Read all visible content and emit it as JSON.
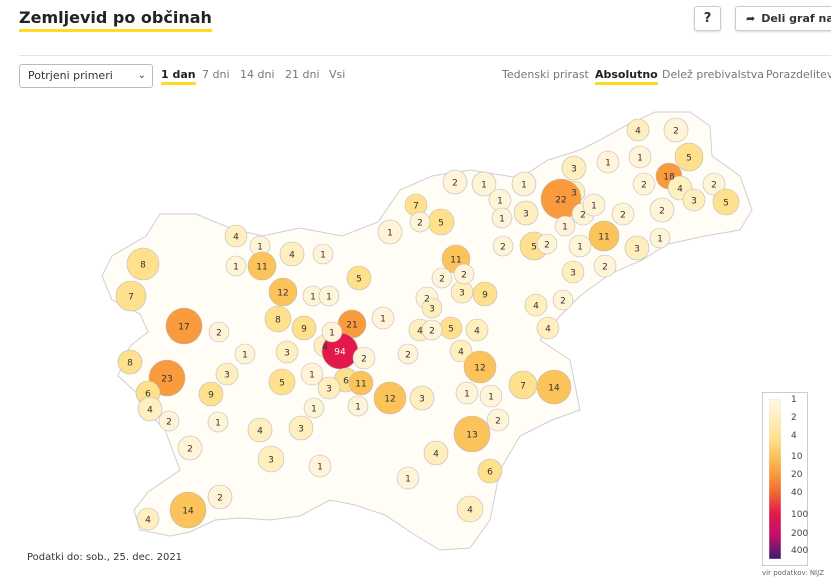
{
  "header": {
    "title": "Zemljevid po občinah",
    "help_label": "?",
    "share_label": "Deli graf na",
    "share_icon": "share-arrow-icon"
  },
  "controls": {
    "select_value": "Potrjeni primeri",
    "time_filters": [
      {
        "label": "1 dan",
        "active": true
      },
      {
        "label": "7 dni",
        "active": false
      },
      {
        "label": "14 dni",
        "active": false
      },
      {
        "label": "21 dni",
        "active": false
      },
      {
        "label": "Vsi",
        "active": false
      }
    ],
    "mode_filters": [
      {
        "label": "Tedenski prirast",
        "active": false
      },
      {
        "label": "Absolutno",
        "active": true
      },
      {
        "label": "Delež prebivalstva",
        "active": false
      },
      {
        "label": "Porazdelitev",
        "active": false
      }
    ]
  },
  "legend": {
    "labels": [
      "1",
      "2",
      "4",
      "10",
      "20",
      "40",
      "100",
      "200",
      "400"
    ],
    "colors": [
      "#fff8e6",
      "#ffeebe",
      "#ffe08c",
      "#fbc35a",
      "#f99b3c",
      "#f06a34",
      "#e2194a",
      "#c40f6a",
      "#3c1c70"
    ]
  },
  "map": {
    "outline_color": "#bbbbbb",
    "values": [
      {
        "v": 4
      },
      {
        "v": 2
      },
      {
        "v": 5
      },
      {
        "v": 1
      },
      {
        "v": 3
      },
      {
        "v": 1
      },
      {
        "v": 18
      },
      {
        "v": 2
      },
      {
        "v": 4
      },
      {
        "v": 2
      },
      {
        "v": 1
      },
      {
        "v": 3
      },
      {
        "v": 5
      },
      {
        "v": 1
      },
      {
        "v": 22
      },
      {
        "v": 2
      },
      {
        "v": 1
      },
      {
        "v": 3
      },
      {
        "v": 1
      },
      {
        "v": 2
      },
      {
        "v": 3
      },
      {
        "v": 7
      },
      {
        "v": 5
      },
      {
        "v": 2
      },
      {
        "v": 2
      },
      {
        "v": 11
      },
      {
        "v": 3
      },
      {
        "v": 1
      },
      {
        "v": 2
      },
      {
        "v": 5
      },
      {
        "v": 1
      },
      {
        "v": 1
      },
      {
        "v": 4
      },
      {
        "v": 1
      },
      {
        "v": 8
      },
      {
        "v": 1
      },
      {
        "v": 11
      },
      {
        "v": 4
      },
      {
        "v": 11
      },
      {
        "v": 2
      },
      {
        "v": 1
      },
      {
        "v": 2
      },
      {
        "v": 7
      },
      {
        "v": 12
      },
      {
        "v": 1
      },
      {
        "v": 1
      },
      {
        "v": 3
      },
      {
        "v": 2
      },
      {
        "v": 3
      },
      {
        "v": 9
      },
      {
        "v": 2
      },
      {
        "v": 2
      },
      {
        "v": 4
      },
      {
        "v": 2
      },
      {
        "v": 17
      },
      {
        "v": 2
      },
      {
        "v": 8
      },
      {
        "v": 9
      },
      {
        "v": 4
      },
      {
        "v": 1
      },
      {
        "v": 21
      },
      {
        "v": 1
      },
      {
        "v": 1
      },
      {
        "v": 5
      },
      {
        "v": 4
      },
      {
        "v": 4
      },
      {
        "v": 5
      },
      {
        "v": 3
      },
      {
        "v": 4
      },
      {
        "v": 8
      },
      {
        "v": 94
      },
      {
        "v": 2
      },
      {
        "v": 2
      },
      {
        "v": 3
      },
      {
        "v": 2
      },
      {
        "v": 23
      },
      {
        "v": 1
      },
      {
        "v": 5
      },
      {
        "v": 2
      },
      {
        "v": 6
      },
      {
        "v": 4
      },
      {
        "v": 1
      },
      {
        "v": 12
      },
      {
        "v": 7
      },
      {
        "v": 6
      },
      {
        "v": 9
      },
      {
        "v": 3
      },
      {
        "v": 11
      },
      {
        "v": 14
      },
      {
        "v": 4
      },
      {
        "v": 12
      },
      {
        "v": 3
      },
      {
        "v": 1
      },
      {
        "v": 1
      },
      {
        "v": 1
      },
      {
        "v": 2
      },
      {
        "v": 1
      },
      {
        "v": 4
      },
      {
        "v": 1
      },
      {
        "v": 2
      },
      {
        "v": 3
      },
      {
        "v": 1
      },
      {
        "v": 2
      },
      {
        "v": 13
      },
      {
        "v": 3
      },
      {
        "v": 4
      },
      {
        "v": 3
      },
      {
        "v": 1
      },
      {
        "v": 6
      },
      {
        "v": 1
      },
      {
        "v": 2
      },
      {
        "v": 14
      },
      {
        "v": 4
      },
      {
        "v": 4
      }
    ]
  },
  "footer": {
    "data_date": "Podatki do: sob., 25. dec. 2021",
    "source": "vir podatkov: NIJZ"
  }
}
